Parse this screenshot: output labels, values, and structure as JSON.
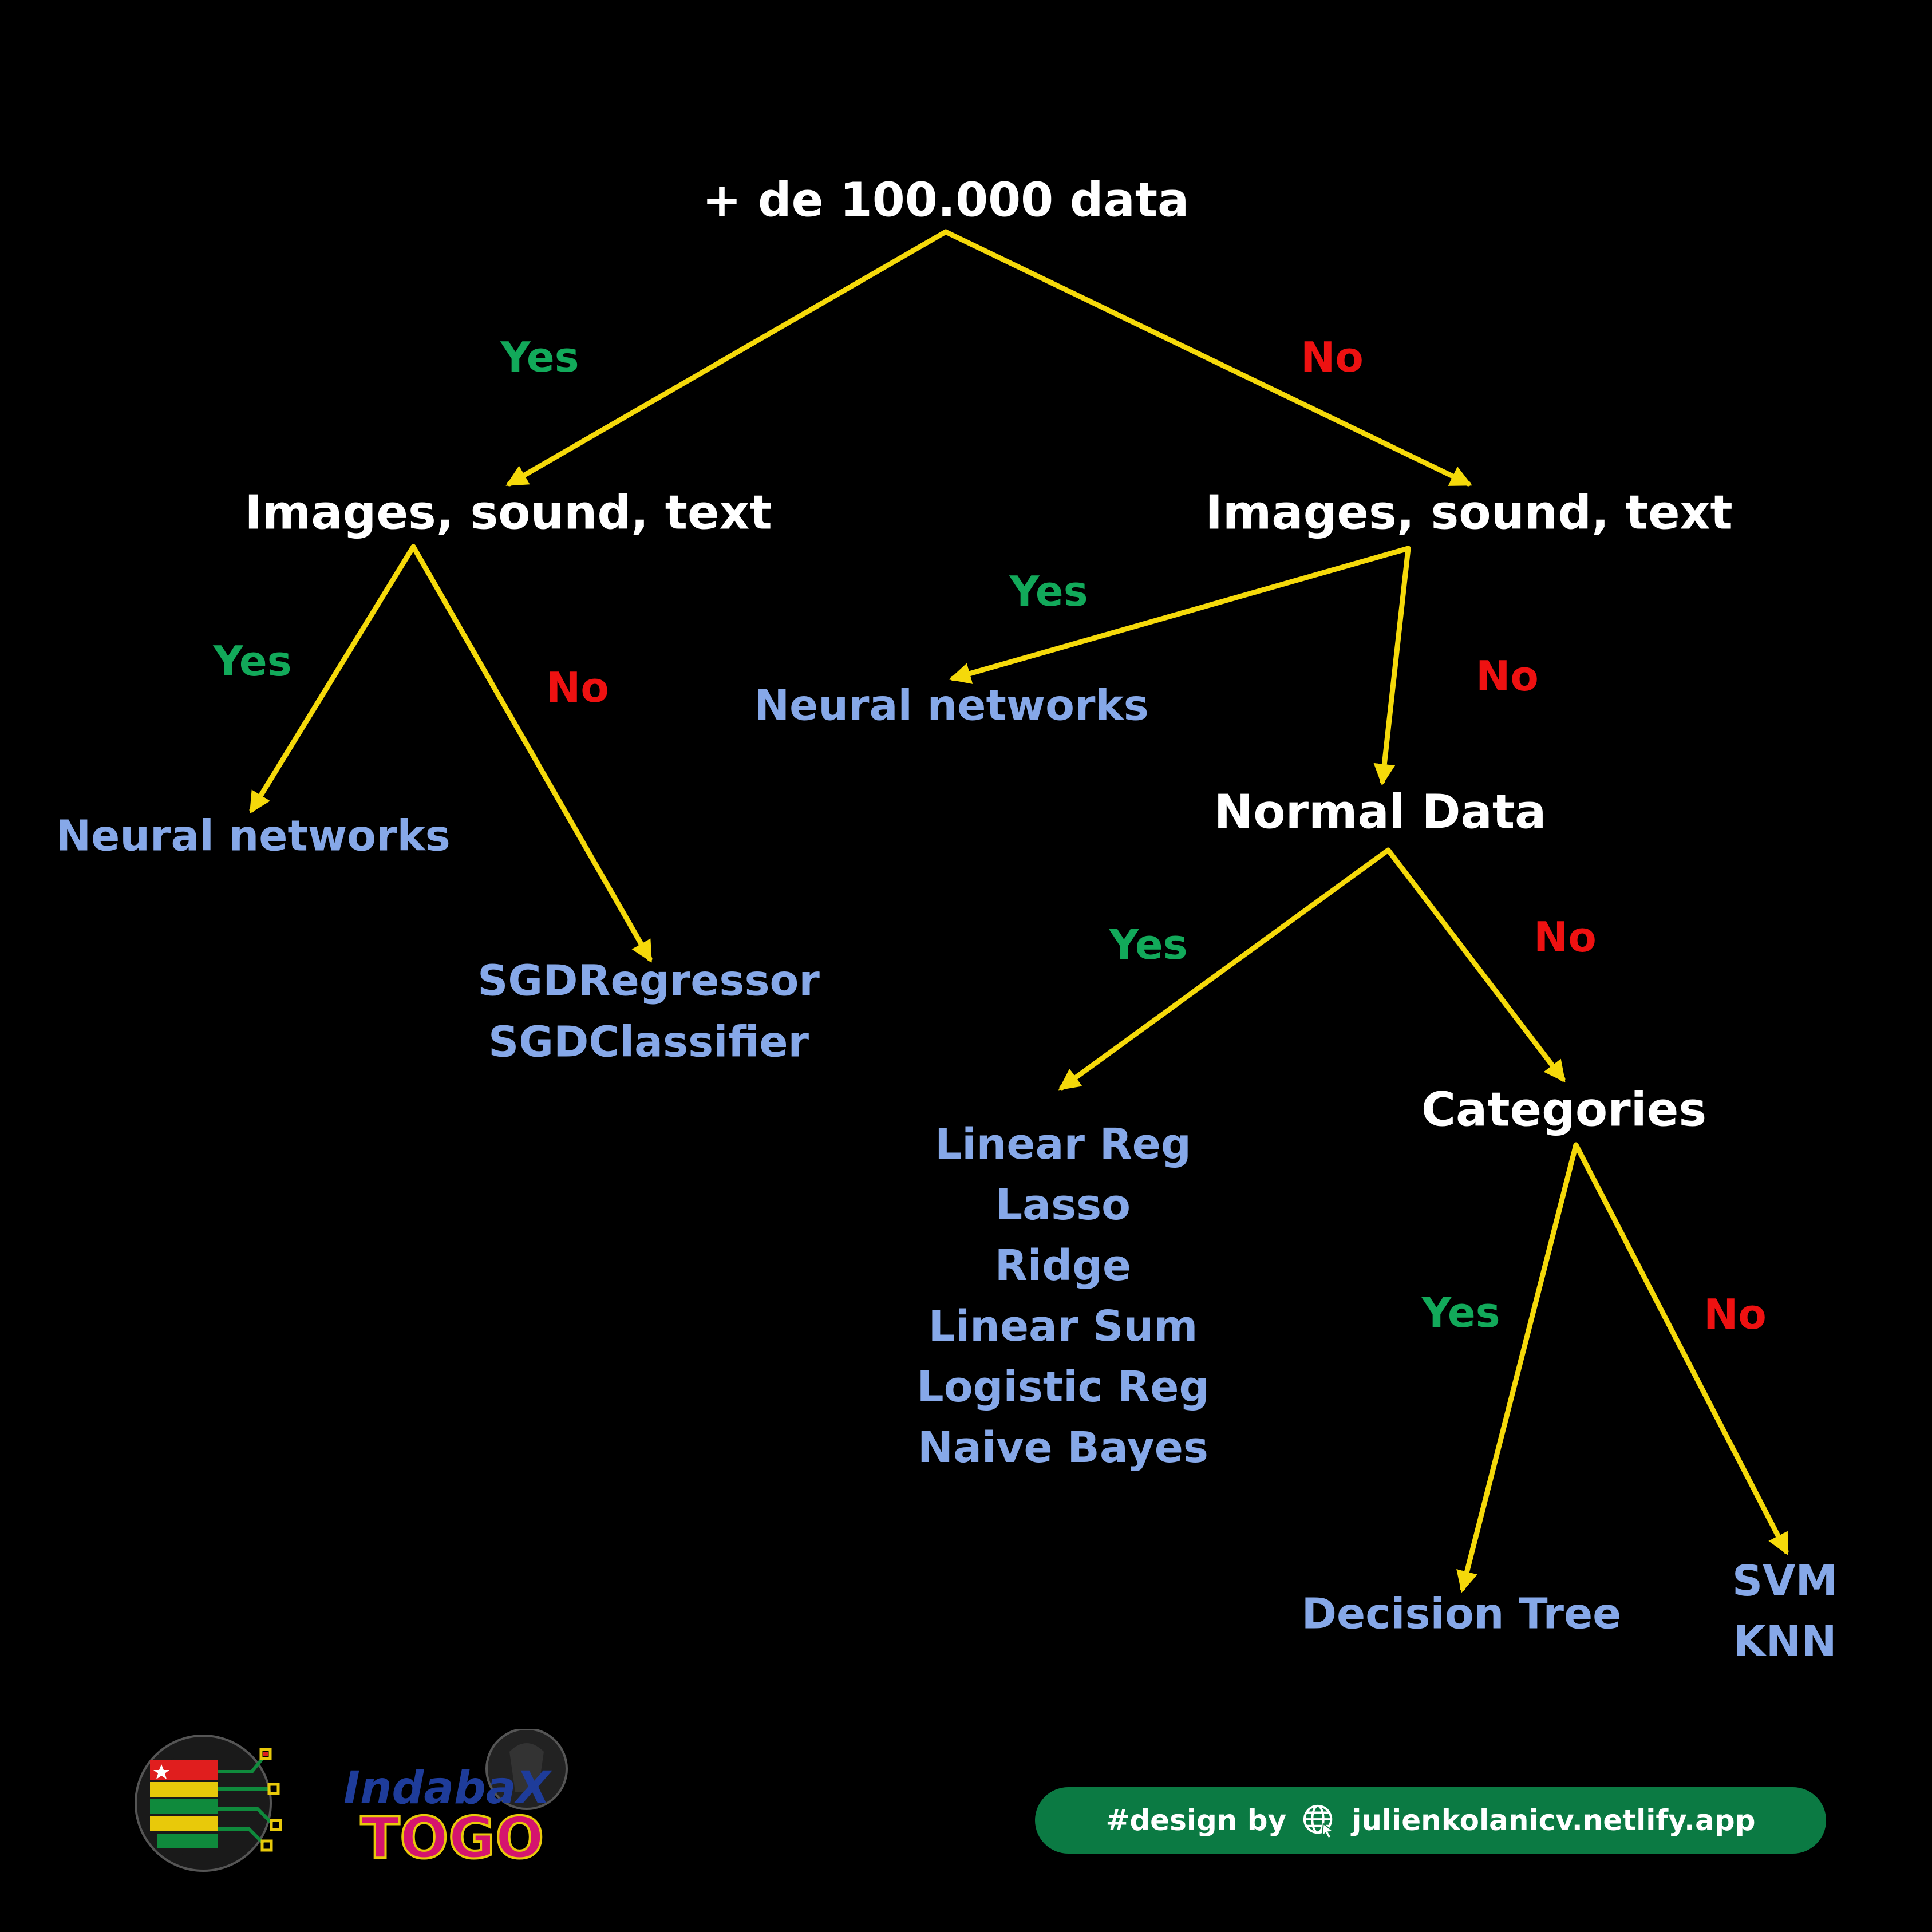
{
  "nodes": {
    "root": "+ de 100.000 data",
    "left_q": "Images, sound, text",
    "right_q": "Images, sound, text",
    "normal_q": "Normal Data",
    "categories_q": "Categories"
  },
  "edge_labels": {
    "root_yes": "Yes",
    "root_no": "No",
    "left_yes": "Yes",
    "left_no": "No",
    "right_yes": "Yes",
    "right_no": "No",
    "normal_yes": "Yes",
    "normal_no": "No",
    "cat_yes": "Yes",
    "cat_no": "No"
  },
  "leaves": {
    "left_nn": "Neural networks",
    "sgd": [
      "SGDRegressor",
      "SGDClassifier"
    ],
    "right_nn": "Neural networks",
    "linear_models": [
      "Linear Reg",
      "Lasso",
      "Ridge",
      "Linear Sum",
      "Logistic Reg",
      "Naive Bayes"
    ],
    "decision_tree": "Decision Tree",
    "svm_knn": [
      "SVM",
      "KNN"
    ]
  },
  "footer": {
    "credit_prefix": "#design by",
    "credit_url": "julienkolanicv.netlify.app",
    "indaba_text": "IndabaX",
    "togo_text": "TOGO"
  },
  "colors": {
    "background": "#000000",
    "arrow": "#f5d90a",
    "question": "#ffffff",
    "leaf": "#86a8e8",
    "yes": "#12a95a",
    "no": "#ee1111",
    "credit_bg": "#0b7a43"
  }
}
